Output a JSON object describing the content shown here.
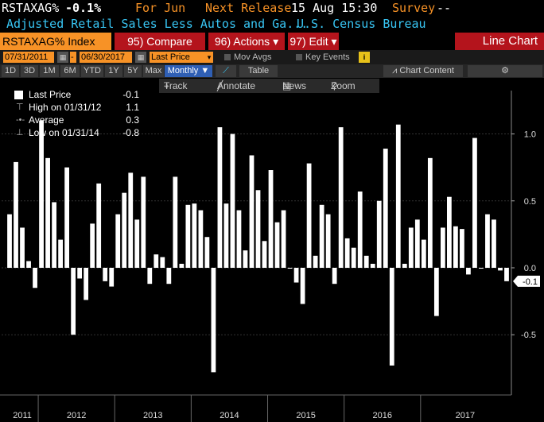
{
  "header": {
    "ticker_code": "RSTAXAG%",
    "last_value": "-0.1%",
    "period_label": "For Jun",
    "next_release_label": "Next Release",
    "next_release_date": "15 Aug 15:30",
    "survey_label": "Survey",
    "survey_value": "--",
    "description": "Adjusted Retail Sales Less Autos and Ga...",
    "source": "U.S. Census Bureau"
  },
  "commandbar": {
    "security": "RSTAXAG% Index",
    "compare": {
      "num": "95)",
      "label": "Compare"
    },
    "actions": {
      "num": "96)",
      "label": "Actions",
      "caret": "▾"
    },
    "edit": {
      "num": "97)",
      "label": "Edit",
      "caret": "▾"
    },
    "title": "Line Chart"
  },
  "datebar": {
    "start_date": "07/31/2011",
    "separator": "-",
    "end_date": "06/30/2017",
    "field": "Last Price",
    "mov_avgs": "Mov Avgs",
    "key_events": "Key Events"
  },
  "rangebar": {
    "ranges": [
      "1D",
      "3D",
      "1M",
      "6M",
      "YTD",
      "1Y",
      "5Y",
      "Max"
    ],
    "frequency": "Monthly ▼",
    "table": "Table",
    "chart_content": "Chart Content"
  },
  "toolbar": {
    "track": "Track",
    "annotate": "Annotate",
    "news": "News",
    "zoom": "Zoom"
  },
  "legend": {
    "last_price": {
      "label": "Last Price",
      "value": "-0.1"
    },
    "high": {
      "label": "High on 01/31/12",
      "value": "1.1"
    },
    "average": {
      "label": "Average",
      "value": "0.3"
    },
    "low": {
      "label": "Low on 01/31/14",
      "value": "-0.8"
    }
  },
  "colors": {
    "orange": "#f79226",
    "red": "#b4141c",
    "cyan": "#38c6f4",
    "bar": "#ffffff"
  },
  "chart_data": {
    "type": "bar",
    "ylim": [
      -0.95,
      1.3
    ],
    "yticks": [
      "1.0",
      "0.5",
      "0.0",
      "-0.5"
    ],
    "ytick_values": [
      1.0,
      0.5,
      0.0,
      -0.5
    ],
    "last_value_label": "-0.1",
    "x_labels": [
      "2011",
      "2012",
      "2013",
      "2014",
      "2015",
      "2016",
      "2017"
    ],
    "grid": true,
    "legend_position": "top-left",
    "series": [
      {
        "values": [
          0.4,
          0.79,
          0.3,
          0.05,
          -0.15,
          1.1,
          0.82,
          0.49,
          0.21,
          0.75,
          -0.5,
          -0.08,
          -0.24,
          0.33,
          0.63,
          -0.1,
          -0.14,
          0.4,
          0.56,
          0.71,
          0.36,
          0.68,
          -0.12,
          0.1,
          0.08,
          -0.12,
          0.68,
          0.03,
          0.47,
          0.48,
          0.43,
          0.23,
          -0.78,
          1.05,
          0.48,
          1.0,
          0.43,
          0.13,
          0.84,
          0.58,
          0.2,
          0.73,
          0.34,
          0.43,
          0.0,
          -0.11,
          -0.27,
          0.78,
          0.09,
          0.47,
          0.4,
          -0.12,
          1.05,
          0.22,
          0.15,
          0.57,
          0.09,
          0.03,
          0.5,
          0.89,
          -0.73,
          1.07,
          0.03,
          0.3,
          0.36,
          0.21,
          0.82,
          -0.36,
          0.3,
          0.53,
          0.31,
          0.29,
          -0.05,
          0.97,
          0.0,
          0.4,
          0.36,
          -0.02,
          -0.1
        ]
      }
    ]
  }
}
